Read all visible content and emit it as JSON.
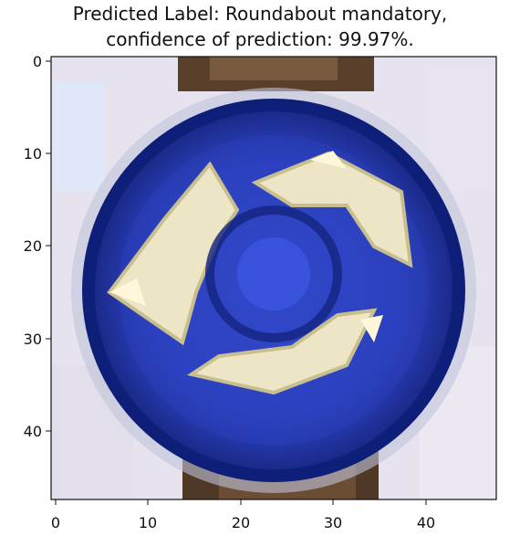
{
  "figure": {
    "title_line1": "Predicted Label: Roundabout mandatory,",
    "title_line2": "confidence of prediction: 99.97%.",
    "image_subject": "roundabout-mandatory-traffic-sign",
    "x_ticks": [
      "0",
      "10",
      "20",
      "30",
      "40"
    ],
    "y_ticks": [
      "0",
      "10",
      "20",
      "30",
      "40"
    ],
    "image_grid": 48,
    "colors": {
      "sign_blue": "#2f45c8",
      "sign_dark_blue": "#0e1f7a",
      "arrow_cream": "#ece6c6",
      "background_light": "#e6e3ee",
      "post_brown": "#5a3f2a"
    }
  }
}
